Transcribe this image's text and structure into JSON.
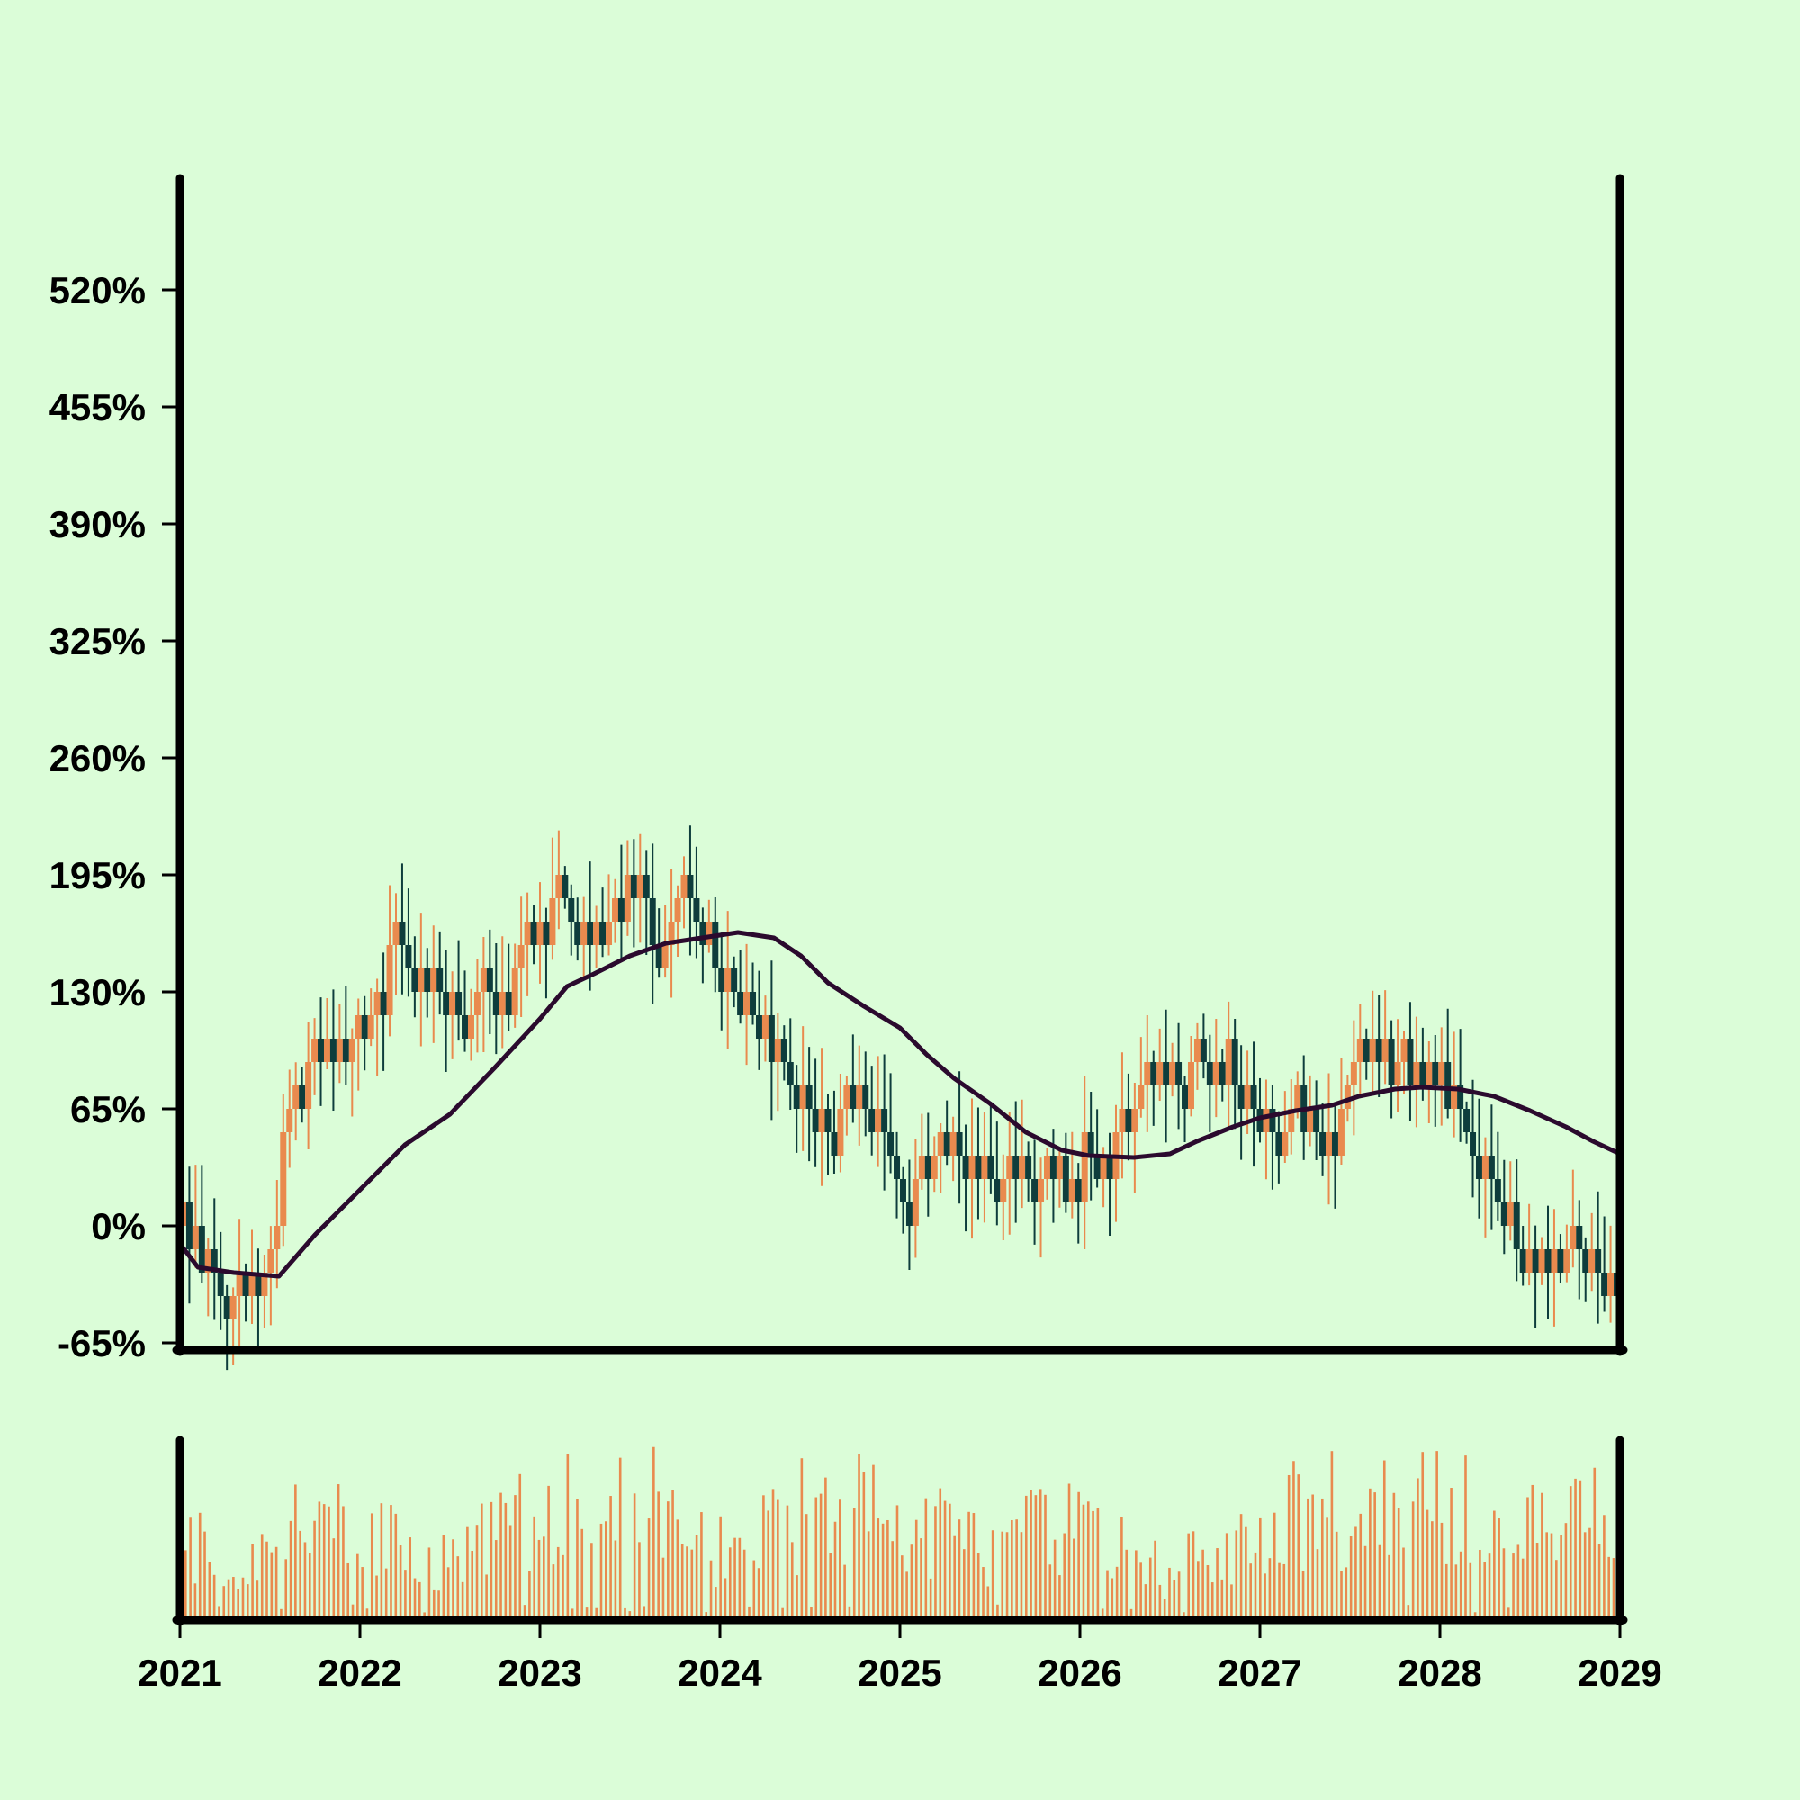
{
  "chart_data": {
    "type": "candlestick",
    "title": "",
    "xlabel": "",
    "ylabel": "",
    "y_unit": "%",
    "ylim": [
      -65,
      585
    ],
    "yticks": [
      -65,
      0,
      65,
      130,
      195,
      260,
      325,
      390,
      455,
      520
    ],
    "ytick_labels": [
      "-65%",
      "0%",
      "65%",
      "130%",
      "195%",
      "260%",
      "325%",
      "390%",
      "455%",
      "520%"
    ],
    "xlim": [
      2021,
      2029
    ],
    "xticks": [
      2021,
      2022,
      2023,
      2024,
      2025,
      2026,
      2027,
      2028,
      2029
    ],
    "xtick_labels": [
      "2021",
      "2022",
      "2023",
      "2024",
      "2025",
      "2026",
      "2027",
      "2028",
      "2029"
    ],
    "price_path": [
      [
        2021.0,
        0
      ],
      [
        2021.1,
        -20
      ],
      [
        2021.25,
        -35
      ],
      [
        2021.45,
        -25
      ],
      [
        2021.55,
        -30
      ],
      [
        2021.58,
        55
      ],
      [
        2021.68,
        80
      ],
      [
        2021.75,
        95
      ],
      [
        2021.95,
        95
      ],
      [
        2022.1,
        120
      ],
      [
        2022.2,
        160
      ],
      [
        2022.35,
        140
      ],
      [
        2022.5,
        130
      ],
      [
        2022.6,
        110
      ],
      [
        2022.75,
        140
      ],
      [
        2022.85,
        130
      ],
      [
        2023.0,
        165
      ],
      [
        2023.1,
        185
      ],
      [
        2023.2,
        180
      ],
      [
        2023.3,
        160
      ],
      [
        2023.45,
        175
      ],
      [
        2023.55,
        195
      ],
      [
        2023.65,
        160
      ],
      [
        2023.72,
        145
      ],
      [
        2023.82,
        185
      ],
      [
        2023.95,
        150
      ],
      [
        2024.1,
        140
      ],
      [
        2024.25,
        115
      ],
      [
        2024.4,
        80
      ],
      [
        2024.55,
        65
      ],
      [
        2024.7,
        60
      ],
      [
        2024.8,
        75
      ],
      [
        2024.92,
        50
      ],
      [
        2025.05,
        20
      ],
      [
        2025.2,
        40
      ],
      [
        2025.3,
        50
      ],
      [
        2025.45,
        30
      ],
      [
        2025.6,
        30
      ],
      [
        2025.8,
        25
      ],
      [
        2025.92,
        20
      ],
      [
        2026.05,
        45
      ],
      [
        2026.15,
        40
      ],
      [
        2026.25,
        55
      ],
      [
        2026.4,
        80
      ],
      [
        2026.55,
        75
      ],
      [
        2026.65,
        90
      ],
      [
        2026.75,
        80
      ],
      [
        2026.85,
        95
      ],
      [
        2027.0,
        70
      ],
      [
        2027.1,
        50
      ],
      [
        2027.25,
        60
      ],
      [
        2027.4,
        45
      ],
      [
        2027.5,
        80
      ],
      [
        2027.55,
        90
      ],
      [
        2027.65,
        95
      ],
      [
        2027.75,
        85
      ],
      [
        2027.9,
        90
      ],
      [
        2028.0,
        80
      ],
      [
        2028.1,
        70
      ],
      [
        2028.2,
        40
      ],
      [
        2028.3,
        35
      ],
      [
        2028.45,
        -5
      ],
      [
        2028.55,
        -30
      ],
      [
        2028.65,
        -15
      ],
      [
        2028.75,
        -10
      ],
      [
        2028.85,
        -20
      ],
      [
        2029.0,
        -30
      ]
    ],
    "moving_average": [
      [
        2021.0,
        -10
      ],
      [
        2021.1,
        -23
      ],
      [
        2021.3,
        -26
      ],
      [
        2021.55,
        -28
      ],
      [
        2021.75,
        -5
      ],
      [
        2022.0,
        20
      ],
      [
        2022.25,
        45
      ],
      [
        2022.5,
        62
      ],
      [
        2022.75,
        88
      ],
      [
        2023.0,
        115
      ],
      [
        2023.15,
        133
      ],
      [
        2023.3,
        140
      ],
      [
        2023.5,
        150
      ],
      [
        2023.7,
        157
      ],
      [
        2023.9,
        160
      ],
      [
        2024.1,
        163
      ],
      [
        2024.3,
        160
      ],
      [
        2024.45,
        150
      ],
      [
        2024.6,
        135
      ],
      [
        2024.8,
        122
      ],
      [
        2025.0,
        110
      ],
      [
        2025.15,
        95
      ],
      [
        2025.3,
        82
      ],
      [
        2025.5,
        68
      ],
      [
        2025.7,
        52
      ],
      [
        2025.9,
        42
      ],
      [
        2026.05,
        39
      ],
      [
        2026.3,
        38
      ],
      [
        2026.5,
        40
      ],
      [
        2026.65,
        47
      ],
      [
        2026.85,
        55
      ],
      [
        2027.0,
        60
      ],
      [
        2027.2,
        64
      ],
      [
        2027.4,
        67
      ],
      [
        2027.55,
        72
      ],
      [
        2027.75,
        76
      ],
      [
        2027.9,
        77
      ],
      [
        2028.1,
        76
      ],
      [
        2028.3,
        72
      ],
      [
        2028.5,
        64
      ],
      [
        2028.7,
        55
      ],
      [
        2028.85,
        47
      ],
      [
        2029.0,
        40
      ]
    ],
    "volume_seed": 7,
    "colors": {
      "background": "#dbfdd8",
      "bullish": "#e98a4e",
      "bearish": "#0e3d3c",
      "moving_average": "#2b0a2e",
      "volume": "#e98a4e",
      "axes": "#000000"
    },
    "grid": false,
    "legend": "none"
  }
}
